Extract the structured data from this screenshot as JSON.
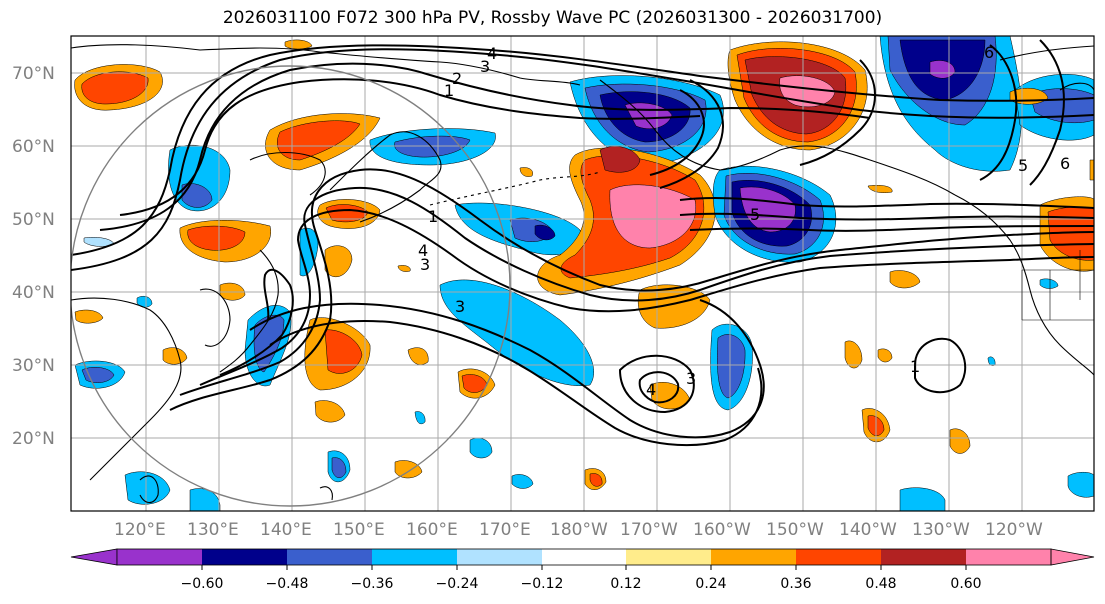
{
  "title": "2026031100 F072 300 hPa PV, Rossby Wave PC (2026031300 - 2026031700)",
  "lat_labels": [
    "70°N",
    "60°N",
    "50°N",
    "40°N",
    "30°N",
    "20°N"
  ],
  "lon_labels": [
    "120°E",
    "130°E",
    "140°E",
    "150°E",
    "160°E",
    "170°E",
    "180°W",
    "170°W",
    "160°W",
    "150°W",
    "140°W",
    "130°W",
    "120°W"
  ],
  "colorbar": {
    "colors": [
      "#9932cc",
      "#00008b",
      "#3a5fcd",
      "#00bfff",
      "#b0e2ff",
      "#ffffff",
      "#ffec8b",
      "#ffa500",
      "#ff4500",
      "#b22222",
      "#ff82ab"
    ],
    "tick_labels": [
      "−0.60",
      "−0.48",
      "−0.36",
      "−0.24",
      "−0.12",
      "0.12",
      "0.24",
      "0.36",
      "0.48",
      "0.60"
    ]
  },
  "contour_labels": [
    "4",
    "3",
    "2",
    "1",
    "3",
    "4",
    "3",
    "1",
    "3",
    "4",
    "5",
    "6",
    "5",
    "6",
    "1"
  ],
  "colors": {
    "orange": "#ffa500",
    "red": "#ff4500",
    "darkred": "#b22222",
    "pink": "#ff82ab",
    "yellow": "#ffec8b",
    "cyan": "#00bfff",
    "lightblue": "#b0e2ff",
    "blue": "#3a5fcd",
    "navy": "#00008b",
    "purple": "#9932cc"
  }
}
